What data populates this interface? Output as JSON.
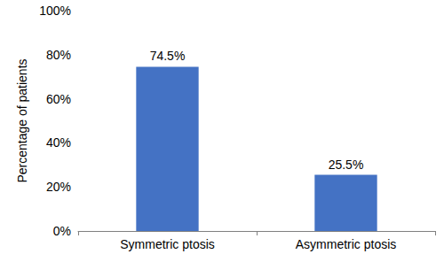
{
  "chart_data": {
    "type": "bar",
    "y_label": "Percentage of patients",
    "categories": [
      "Symmetric ptosis",
      "Asymmetric ptosis"
    ],
    "values": [
      74.5,
      25.5
    ],
    "value_labels": [
      "74.5%",
      "25.5%"
    ],
    "data_labels": true,
    "color": "#4472c4",
    "ylim": [
      0,
      100
    ],
    "yticks": [
      {
        "value": 0,
        "label": "0%"
      },
      {
        "value": 20,
        "label": "20%"
      },
      {
        "value": 40,
        "label": "40%"
      },
      {
        "value": 60,
        "label": "60%"
      },
      {
        "value": 80,
        "label": "80%"
      },
      {
        "value": 100,
        "label": "100%"
      }
    ],
    "grid": false
  }
}
